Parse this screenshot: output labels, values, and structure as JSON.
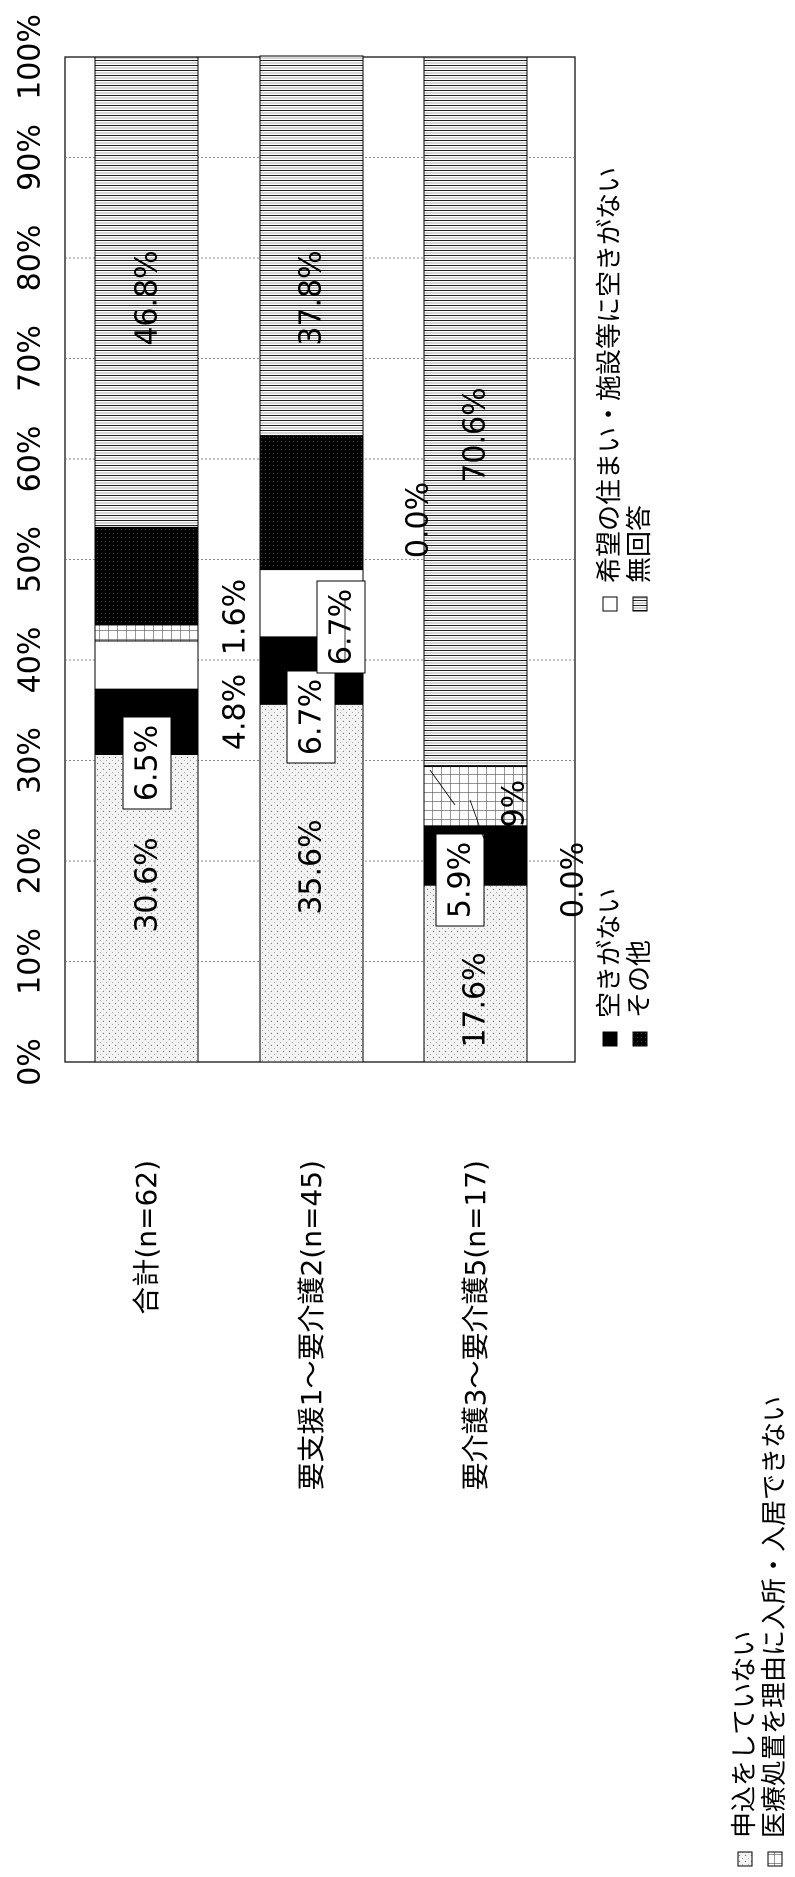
{
  "chart_data": {
    "type": "bar",
    "stacked": true,
    "percent": true,
    "orientation": "horizontal",
    "page_rotation": "90 degrees counter-clockwise",
    "categories": [
      "合計(n=62)",
      "要支援1～要介護2(n=45)",
      "要介護3～要介護5(n=17)"
    ],
    "series": [
      {
        "name": "申込をしていない",
        "values": [
          30.6,
          35.6,
          17.6
        ],
        "pattern": "light-dots",
        "labels": [
          "30.6%",
          "35.6%",
          "17.6%"
        ]
      },
      {
        "name": "空きがない",
        "values": [
          6.5,
          6.7,
          5.9
        ],
        "pattern": "solid-black",
        "labels": [
          "6.5%",
          "6.7%",
          "5.9%"
        ]
      },
      {
        "name": "希望の住まい・施設等に空きがない",
        "values": [
          4.8,
          6.7,
          0.0
        ],
        "pattern": "white",
        "labels": [
          "4.8%",
          "6.7%",
          "0.0%"
        ]
      },
      {
        "name": "医療処置を理由に入所・入居できない",
        "values": [
          1.6,
          0.0,
          5.9
        ],
        "pattern": "grid",
        "labels": [
          "1.6%",
          "0.0%",
          "5.9%"
        ]
      },
      {
        "name": "その他",
        "values": [
          9.7,
          13.3,
          0.0
        ],
        "pattern": "dense-black",
        "labels": [
          "",
          "",
          "0.0%"
        ]
      },
      {
        "name": "無回答",
        "values": [
          46.8,
          37.8,
          70.6
        ],
        "pattern": "horizontal-lines",
        "labels": [
          "46.8%",
          "37.8%",
          "70.6%"
        ]
      }
    ],
    "xlim": [
      0,
      100
    ],
    "x_ticks": [
      "0%",
      "10%",
      "20%",
      "30%",
      "40%",
      "50%",
      "60%",
      "70%",
      "80%",
      "90%",
      "100%"
    ],
    "grid": true,
    "legend_position": "bottom",
    "legend_order": [
      "申込をしていない",
      "空きがない",
      "希望の住まい・施設等に空きがない",
      "医療処置を理由に入所・入居できない",
      "その他",
      "無回答"
    ],
    "title": "",
    "xlabel": "",
    "ylabel": ""
  }
}
